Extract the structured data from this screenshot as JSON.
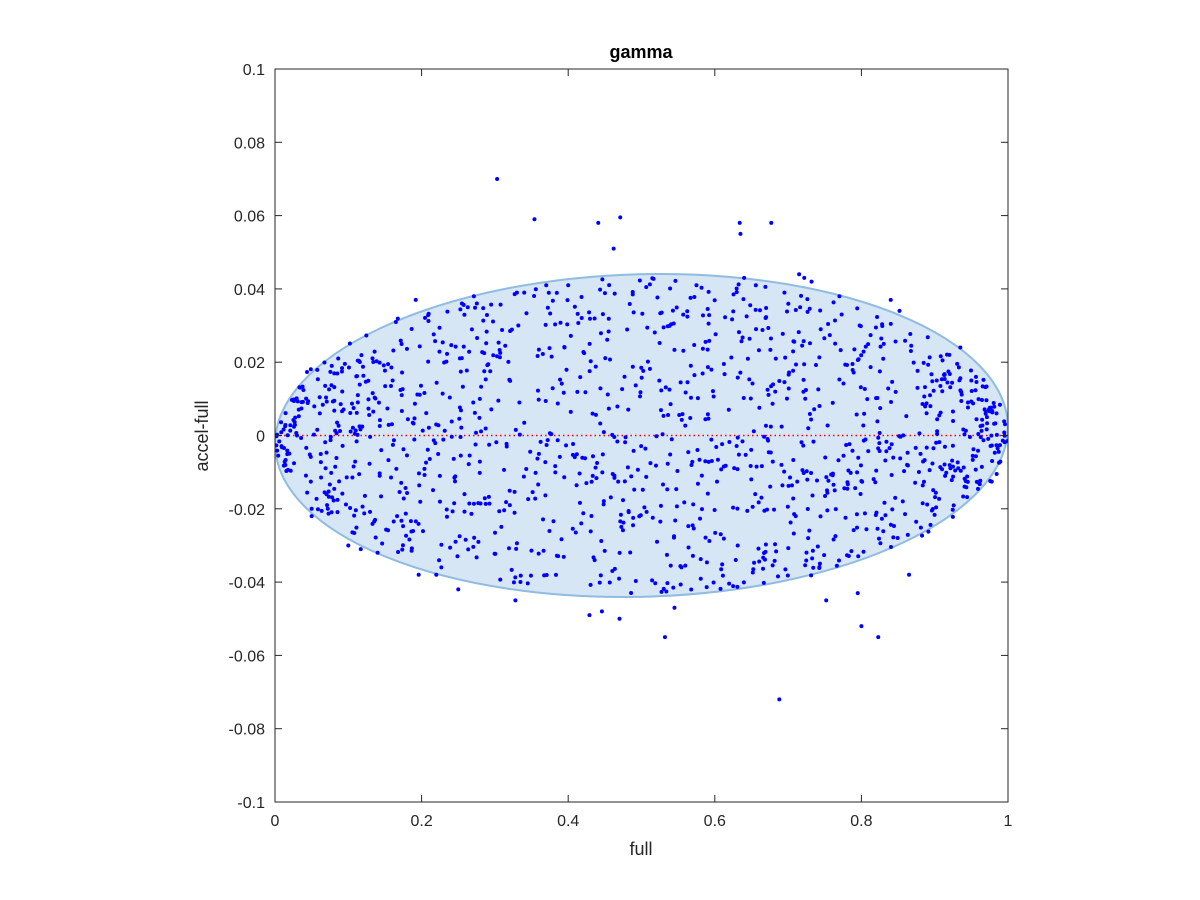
{
  "chart_data": {
    "type": "scatter",
    "title": "gamma",
    "xlabel": "full",
    "ylabel": "accel-full",
    "xlim": [
      0,
      1
    ],
    "ylim": [
      -0.1,
      0.1
    ],
    "xticks": [
      "0",
      "0.2",
      "0.4",
      "0.6",
      "0.8",
      "1"
    ],
    "xtick_values": [
      0,
      0.2,
      0.4,
      0.6,
      0.8,
      1
    ],
    "yticks": [
      "-0.1",
      "-0.08",
      "-0.06",
      "-0.04",
      "-0.02",
      "0",
      "0.02",
      "0.04",
      "0.06",
      "0.08",
      "0.1"
    ],
    "ytick_values": [
      -0.1,
      -0.08,
      -0.06,
      -0.04,
      -0.02,
      0,
      0.02,
      0.04,
      0.06,
      0.08,
      0.1
    ],
    "grid": false,
    "point_color": "#0000ff",
    "reference_line": {
      "y": 0,
      "x_range": [
        0,
        1
      ],
      "style": "dotted",
      "color": "#ff0000"
    },
    "ellipse": {
      "center": [
        0.5,
        0.0
      ],
      "x_half_width": 0.5,
      "y_half_height": 0.044,
      "tilt": "slight",
      "fill": "#d6e6f4",
      "stroke": "#8fbce0"
    },
    "points": [
      [
        0.303,
        0.07
      ],
      [
        0.354,
        0.059
      ],
      [
        0.441,
        0.058
      ],
      [
        0.471,
        0.0595
      ],
      [
        0.462,
        0.051
      ],
      [
        0.634,
        0.058
      ],
      [
        0.635,
        0.055
      ],
      [
        0.677,
        0.058
      ],
      [
        0.64,
        0.043
      ],
      [
        0.715,
        0.044
      ],
      [
        0.722,
        0.043
      ],
      [
        0.732,
        0.042
      ],
      [
        0.688,
        -0.072
      ],
      [
        0.532,
        -0.055
      ],
      [
        0.823,
        -0.055
      ],
      [
        0.8,
        -0.052
      ],
      [
        0.795,
        -0.043
      ],
      [
        0.429,
        -0.049
      ],
      [
        0.446,
        -0.048
      ],
      [
        0.47,
        -0.05
      ],
      [
        0.545,
        -0.047
      ],
      [
        0.328,
        -0.045
      ],
      [
        0.25,
        -0.042
      ],
      [
        0.22,
        -0.038
      ],
      [
        0.196,
        -0.038
      ],
      [
        0.117,
        -0.031
      ],
      [
        0.14,
        -0.032
      ],
      [
        0.1,
        -0.03
      ],
      [
        0.05,
        -0.02
      ],
      [
        0.05,
        -0.022
      ],
      [
        0.072,
        -0.02
      ],
      [
        0.071,
        -0.019
      ],
      [
        0.192,
        0.037
      ],
      [
        0.255,
        0.036
      ],
      [
        0.263,
        0.035
      ],
      [
        0.33,
        0.039
      ],
      [
        0.34,
        0.039
      ],
      [
        0.4,
        0.041
      ],
      [
        0.37,
        0.041
      ],
      [
        0.575,
        0.041
      ],
      [
        0.656,
        0.041
      ],
      [
        0.695,
        0.039
      ],
      [
        0.77,
        0.038
      ],
      [
        0.84,
        0.037
      ],
      [
        0.852,
        0.034
      ],
      [
        0.92,
        0.022
      ],
      [
        0.935,
        0.024
      ],
      [
        0.95,
        0.015
      ],
      [
        0.752,
        -0.045
      ],
      [
        0.865,
        -0.038
      ]
    ]
  }
}
